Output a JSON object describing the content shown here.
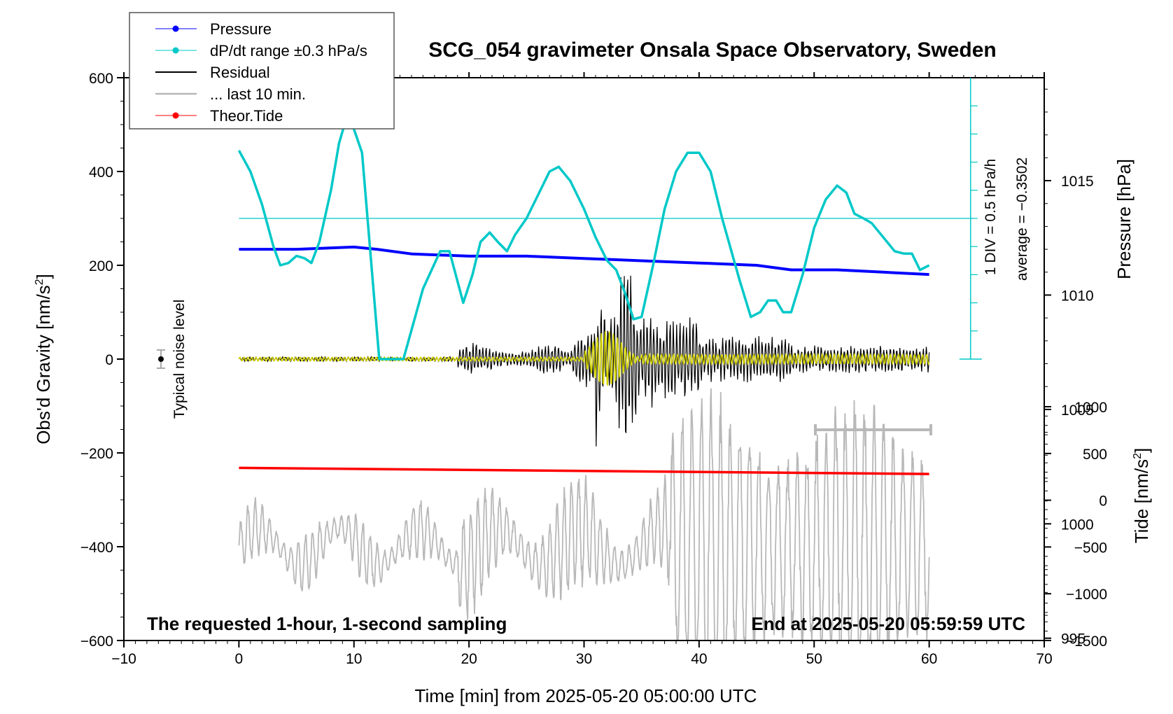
{
  "chart_data": {
    "type": "line",
    "title": "SCG_054 gravimeter Onsala Space Observatory, Sweden",
    "xlabel": "Time [min] from 2025-05-20 05:00:00 UTC",
    "ylabel_main": "Obs'd Gravity [nm/s",
    "ylabel_main_sup": "2",
    "ylabel_main_end": "]",
    "ylabel_pressure": "Pressure [hPa]",
    "ylabel_tide": "Tide [nm/s",
    "ylabel_tide_sup": "2",
    "ylabel_tide_end": "]",
    "xlim": [
      -10,
      70
    ],
    "ylim": [
      -600,
      600
    ],
    "x_ticks": [
      "-10",
      "0",
      "10",
      "20",
      "30",
      "40",
      "50",
      "60",
      "70"
    ],
    "y_ticks": [
      "600",
      "400",
      "200",
      "0",
      "-200",
      "-400",
      "-600"
    ],
    "pressure_ticks": [
      "1015",
      "1010",
      "1005",
      "1000",
      "995"
    ],
    "tide_ticks": [
      "1000",
      "500",
      "0",
      "-500",
      "-1000",
      "-1500"
    ],
    "pressure_range_hPa": [
      994.9,
      1019.5
    ],
    "tide_range": [
      -1500,
      1000
    ],
    "legend": [
      {
        "label": "Pressure",
        "color": "#0000ff",
        "marker": true,
        "width": 1
      },
      {
        "label": "dP/dt range ±0.3 hPa/s",
        "color": "#00c8c8",
        "marker": true,
        "width": 1
      },
      {
        "label": "Residual",
        "color": "#000000",
        "marker": false,
        "width": 2
      },
      {
        "label": "... last 10 min.",
        "color": "#b8b8b8",
        "marker": false,
        "width": 2.5
      },
      {
        "label": "Theor.Tide",
        "color": "#ff0000",
        "marker": true,
        "width": 1
      }
    ],
    "annotations": {
      "bottom_left": "The requested 1-hour, 1-second sampling",
      "bottom_right": "End at 2025-05-20 05:59:59 UTC",
      "noise": "Typical noise level",
      "div": "1 DIV = 0.5 hPa/h",
      "average": "average = −0.3502"
    },
    "series": [
      {
        "name": "Pressure",
        "color": "#0000ff",
        "unit": "hPa",
        "x": [
          0,
          5,
          10,
          12,
          15,
          20,
          25,
          30,
          35,
          40,
          45,
          48,
          52,
          56,
          60
        ],
        "y": [
          1012.0,
          1012.0,
          1012.1,
          1012.0,
          1011.8,
          1011.7,
          1011.7,
          1011.6,
          1011.5,
          1011.4,
          1011.3,
          1011.1,
          1011.1,
          1011.0,
          1010.9
        ]
      },
      {
        "name": "dP/dt range ±0.3 hPa/s",
        "color": "#00c8c8",
        "unit": "nm/s2 scale",
        "x": [
          0,
          1,
          2,
          3,
          3.6,
          4.3,
          5,
          5.7,
          6.3,
          7,
          8,
          8.7,
          9.3,
          10,
          10.7,
          12.2,
          14.3,
          16,
          17.5,
          18.3,
          19.5,
          20.3,
          21,
          21.8,
          22.5,
          23.3,
          24,
          25,
          26,
          27,
          27.8,
          28.8,
          30,
          31,
          32,
          32.8,
          33.5,
          34.3,
          35,
          36,
          37,
          38,
          39,
          40,
          41,
          42,
          43.5,
          44.5,
          45.3,
          46,
          46.7,
          47.3,
          48,
          49,
          50,
          51,
          52,
          52.8,
          53.5,
          54.3,
          55,
          56,
          57,
          57.8,
          58.5,
          59.2,
          60
        ],
        "y": [
          445,
          400,
          330,
          240,
          200,
          205,
          220,
          215,
          205,
          250,
          360,
          460,
          510,
          490,
          440,
          0,
          0,
          150,
          230,
          230,
          120,
          180,
          250,
          270,
          250,
          230,
          265,
          300,
          350,
          400,
          410,
          380,
          320,
          260,
          210,
          190,
          145,
          85,
          90,
          200,
          320,
          400,
          440,
          440,
          400,
          300,
          170,
          90,
          100,
          125,
          125,
          100,
          100,
          180,
          280,
          340,
          370,
          355,
          310,
          300,
          290,
          260,
          230,
          225,
          225,
          190,
          200
        ]
      },
      {
        "name": "Theor.Tide",
        "color": "#ff0000",
        "unit": "nm/s2",
        "x": [
          0,
          60
        ],
        "y": [
          -232,
          -245
        ]
      }
    ]
  }
}
